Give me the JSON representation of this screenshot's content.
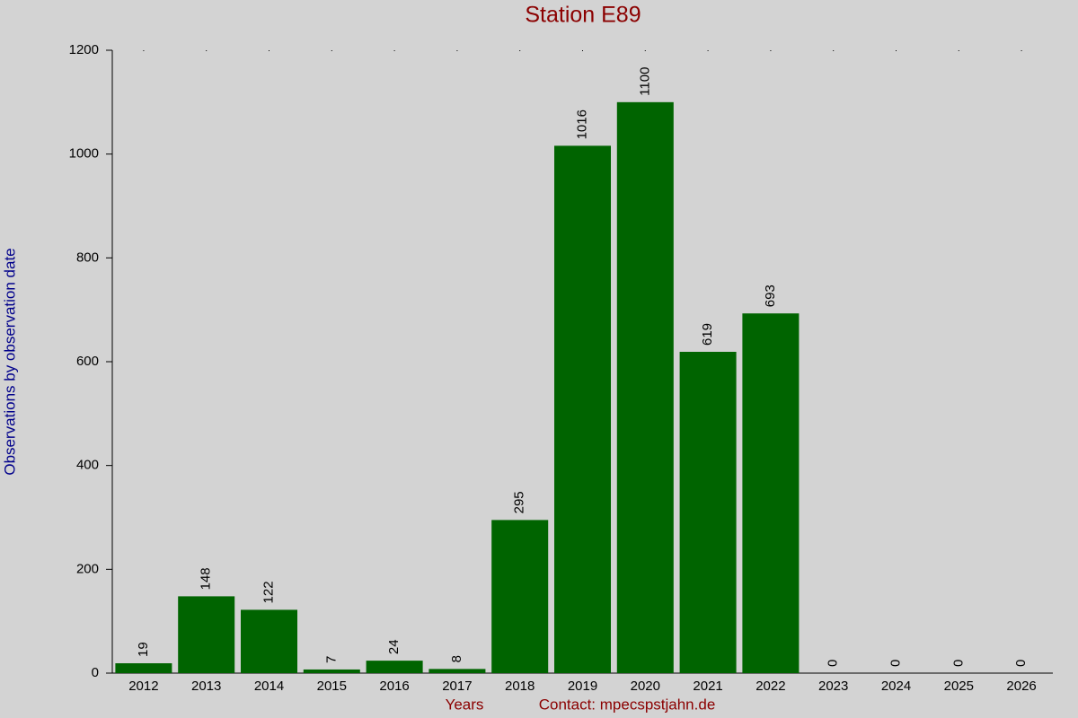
{
  "chart_data": {
    "type": "bar",
    "title": "Station E89",
    "y_label": "Observations by observation date",
    "x_label": "Years",
    "contact": "Contact: mpecspstjahn.de",
    "categories": [
      "2012",
      "2013",
      "2014",
      "2015",
      "2016",
      "2017",
      "2018",
      "2019",
      "2020",
      "2021",
      "2022",
      "2023",
      "2024",
      "2025",
      "2026"
    ],
    "values": [
      19,
      148,
      122,
      7,
      24,
      8,
      295,
      1016,
      1100,
      619,
      693,
      0,
      0,
      0,
      0
    ],
    "color": "#006400",
    "ylim": [
      0,
      1200
    ],
    "yticks": [
      0,
      200,
      400,
      600,
      800,
      1000,
      1200
    ],
    "grid": false
  }
}
